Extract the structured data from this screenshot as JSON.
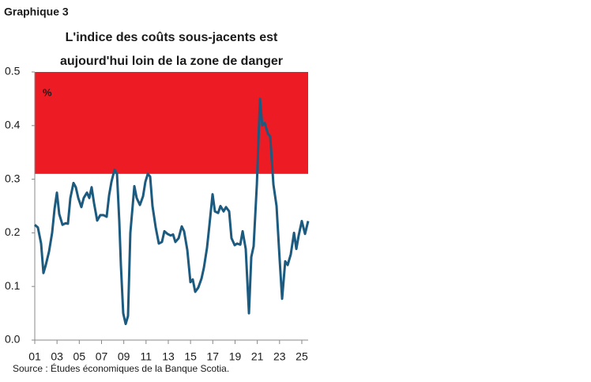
{
  "chart_data": {
    "type": "line",
    "label": "Graphique 3",
    "title_lines": [
      "L'indice des coûts sous-jacents est",
      "aujourd'hui loin de la zone de danger"
    ],
    "unit": "%",
    "source": "Source : Études économiques de la Banque Scotia.",
    "danger_zone": [
      0.31,
      0.5
    ],
    "danger_color": "#ed1c24",
    "xlim": [
      2001,
      2025.57
    ],
    "ylim": [
      0,
      0.5
    ],
    "yticks": [
      {
        "value": 0,
        "label": "0.0"
      },
      0.1,
      0.2,
      0.3,
      0.4,
      0.5
    ],
    "xticks": [
      {
        "value": 2001,
        "label": "01"
      },
      {
        "value": 2003,
        "label": "03"
      },
      {
        "value": 2005,
        "label": "05"
      },
      {
        "value": 2007,
        "label": "07"
      },
      {
        "value": 2009,
        "label": "09"
      },
      {
        "value": 2011,
        "label": "11"
      },
      {
        "value": 2013,
        "label": "13"
      },
      {
        "value": 2015,
        "label": "15"
      },
      {
        "value": 2017,
        "label": "17"
      },
      {
        "value": 2019,
        "label": "19"
      },
      {
        "value": 2021,
        "label": "21"
      },
      {
        "value": 2023,
        "label": "23"
      },
      {
        "value": 2025,
        "label": "25"
      }
    ],
    "x": [
      2001.0,
      2001.28,
      2001.57,
      2001.78,
      2001.99,
      2002.28,
      2002.56,
      2002.78,
      2002.99,
      2003.2,
      2003.49,
      2003.77,
      2003.98,
      2004.2,
      2004.48,
      2004.69,
      2004.91,
      2005.19,
      2005.4,
      2005.69,
      2005.9,
      2006.11,
      2006.33,
      2006.61,
      2006.89,
      2007.18,
      2007.46,
      2007.68,
      2007.89,
      2008.17,
      2008.39,
      2008.6,
      2008.74,
      2008.95,
      2009.17,
      2009.38,
      2009.59,
      2009.95,
      2010.16,
      2010.45,
      2010.73,
      2010.94,
      2011.16,
      2011.37,
      2011.58,
      2011.87,
      2012.15,
      2012.43,
      2012.65,
      2012.93,
      2013.22,
      2013.43,
      2013.64,
      2013.93,
      2014.21,
      2014.42,
      2014.71,
      2014.99,
      2015.2,
      2015.42,
      2015.7,
      2015.99,
      2016.2,
      2016.48,
      2016.7,
      2016.98,
      2017.19,
      2017.48,
      2017.69,
      2017.97,
      2018.19,
      2018.47,
      2018.68,
      2018.97,
      2019.18,
      2019.47,
      2019.68,
      2019.96,
      2020.25,
      2020.46,
      2020.67,
      2020.96,
      2021.24,
      2021.45,
      2021.67,
      2021.95,
      2022.16,
      2022.45,
      2022.73,
      2023.01,
      2023.23,
      2023.51,
      2023.73,
      2024.01,
      2024.3,
      2024.51,
      2024.72,
      2025.0,
      2025.29,
      2025.57
    ],
    "series": [
      {
        "color": "#1c5b7f",
        "values": [
          0.215,
          0.21,
          0.18,
          0.125,
          0.14,
          0.165,
          0.2,
          0.245,
          0.275,
          0.235,
          0.215,
          0.218,
          0.217,
          0.265,
          0.293,
          0.285,
          0.265,
          0.248,
          0.265,
          0.275,
          0.265,
          0.285,
          0.255,
          0.223,
          0.233,
          0.233,
          0.23,
          0.27,
          0.295,
          0.318,
          0.31,
          0.22,
          0.14,
          0.05,
          0.03,
          0.045,
          0.2,
          0.287,
          0.265,
          0.252,
          0.268,
          0.295,
          0.31,
          0.305,
          0.25,
          0.21,
          0.18,
          0.183,
          0.203,
          0.198,
          0.195,
          0.197,
          0.183,
          0.19,
          0.212,
          0.203,
          0.168,
          0.108,
          0.113,
          0.09,
          0.098,
          0.115,
          0.135,
          0.172,
          0.215,
          0.272,
          0.24,
          0.237,
          0.25,
          0.24,
          0.248,
          0.24,
          0.19,
          0.177,
          0.18,
          0.178,
          0.203,
          0.17,
          0.05,
          0.155,
          0.175,
          0.29,
          0.45,
          0.4,
          0.405,
          0.385,
          0.38,
          0.29,
          0.25,
          0.15,
          0.077,
          0.147,
          0.14,
          0.16,
          0.2,
          0.17,
          0.195,
          0.222,
          0.198,
          0.222
        ]
      }
    ]
  }
}
